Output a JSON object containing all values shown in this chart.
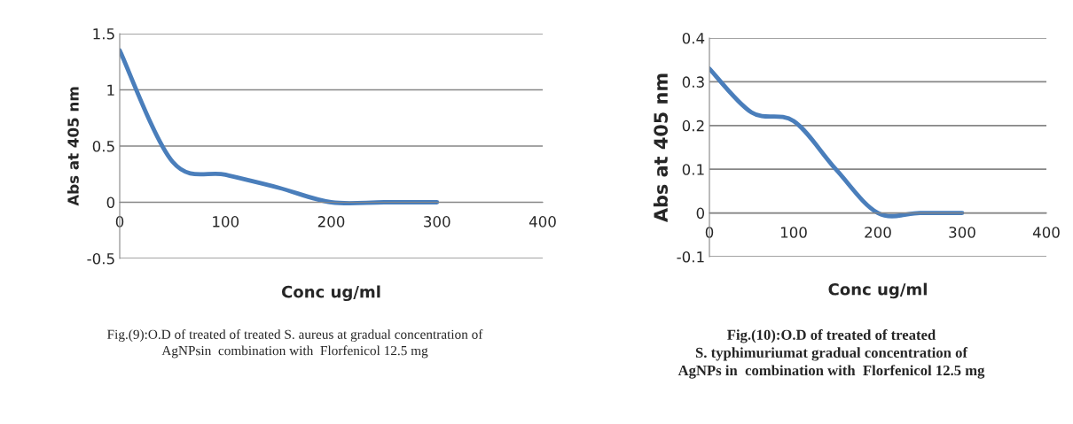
{
  "chart_data": [
    {
      "type": "line",
      "xlabel": "Conc ug/ml",
      "ylabel": "Abs at 405 nm",
      "series": [
        {
          "color": "#4a7ebb",
          "x": [
            0,
            50,
            100,
            150,
            200,
            250,
            300
          ],
          "values": [
            1.35,
            0.36,
            0.245,
            0.13,
            0,
            0,
            0
          ]
        }
      ],
      "xlim": [
        0,
        400
      ],
      "xticks": [
        0,
        100,
        200,
        300,
        400
      ],
      "ylim": [
        -0.5,
        1.5
      ],
      "yticks": [
        -0.5,
        0,
        0.5,
        1,
        1.5
      ],
      "grid": "y",
      "marker": "none",
      "line_style": "solid",
      "annotations": [
        "Fig.(9):O.D of treated of treated S. aureus at gradual concentration of\nAgNPsin  combination with  Florfenicol 12.5 mg"
      ]
    },
    {
      "type": "line",
      "xlabel": "Conc ug/ml",
      "ylabel": "Abs at 405 nm",
      "series": [
        {
          "color": "#4a7ebb",
          "x": [
            0,
            50,
            100,
            150,
            200,
            250,
            300
          ],
          "values": [
            0.33,
            0.23,
            0.21,
            0.1,
            0,
            0,
            0
          ]
        }
      ],
      "xlim": [
        0,
        400
      ],
      "xticks": [
        0,
        100,
        200,
        300,
        400
      ],
      "ylim": [
        -0.1,
        0.4
      ],
      "yticks": [
        -0.1,
        0,
        0.1,
        0.2,
        0.3,
        0.4
      ],
      "grid": "y",
      "marker": "none",
      "line_style": "solid",
      "annotations": [
        "Fig.(10):O.D of treated of treated\nS. typhimuriumat gradual concentration of\nAgNPs in  combination with  Florfenicol 12.5 mg"
      ]
    }
  ]
}
